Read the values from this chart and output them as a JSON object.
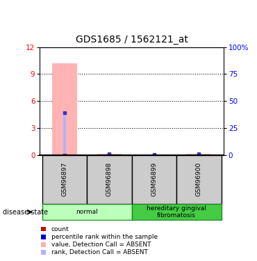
{
  "title": "GDS1685 / 1562121_at",
  "samples": [
    "GSM96897",
    "GSM96898",
    "GSM96899",
    "GSM96900"
  ],
  "bar_values": [
    10.2,
    0.15,
    0.1,
    0.18
  ],
  "rank_values": [
    4.7,
    0.15,
    0.1,
    0.18
  ],
  "ylim_left": [
    0,
    12
  ],
  "ylim_right": [
    0,
    100
  ],
  "yticks_left": [
    0,
    3,
    6,
    9,
    12
  ],
  "yticks_right": [
    0,
    25,
    50,
    75,
    100
  ],
  "ytick_labels_right": [
    "0",
    "25",
    "50",
    "75",
    "100%"
  ],
  "groups": [
    {
      "label": "normal",
      "span": [
        0,
        2
      ],
      "color": "#bbffbb"
    },
    {
      "label": "hereditary gingival\nfibromatosis",
      "span": [
        2,
        4
      ],
      "color": "#44cc44"
    }
  ],
  "legend_items": [
    {
      "color": "#cc0000",
      "label": "count"
    },
    {
      "color": "#0000cc",
      "label": "percentile rank within the sample"
    },
    {
      "color": "#ffb3b3",
      "label": "value, Detection Call = ABSENT"
    },
    {
      "color": "#b3b3ff",
      "label": "rank, Detection Call = ABSENT"
    }
  ],
  "sample_box_color": "#cccccc",
  "title_fontsize": 10,
  "bar_pink": "#ffb3b3",
  "bar_blue": "#b3b3ff",
  "dot_red": "#cc0000",
  "dot_blue_color": "#3333cc"
}
